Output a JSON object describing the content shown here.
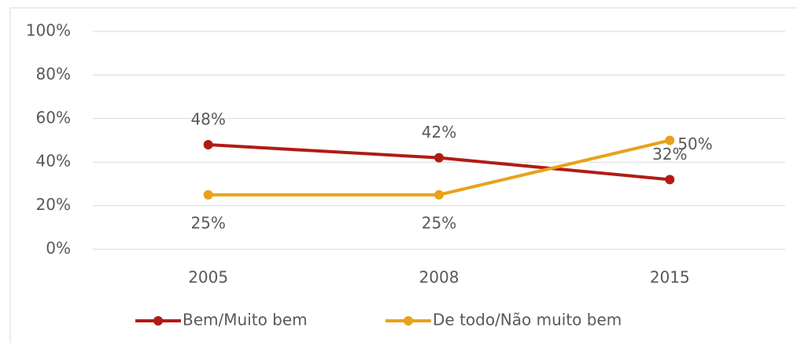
{
  "chart_data": {
    "type": "line",
    "categories": [
      "2005",
      "2008",
      "2015"
    ],
    "series": [
      {
        "name": "Bem/Muito bem",
        "color": "#b01c14",
        "values": [
          48,
          42,
          32
        ],
        "value_labels": [
          "48%",
          "42%",
          "32%"
        ]
      },
      {
        "name": "De todo/Não muito bem",
        "color": "#e8a21a",
        "values": [
          25,
          25,
          50
        ],
        "value_labels": [
          "25%",
          "25%",
          "50%"
        ]
      }
    ],
    "ylim": [
      0,
      100
    ],
    "yticks": [
      {
        "value": 0,
        "label": "0%"
      },
      {
        "value": 20,
        "label": "20%"
      },
      {
        "value": 40,
        "label": "40%"
      },
      {
        "value": 60,
        "label": "60%"
      },
      {
        "value": 80,
        "label": "80%"
      },
      {
        "value": 100,
        "label": "100%"
      }
    ],
    "grid": true,
    "legend": "bottom"
  }
}
